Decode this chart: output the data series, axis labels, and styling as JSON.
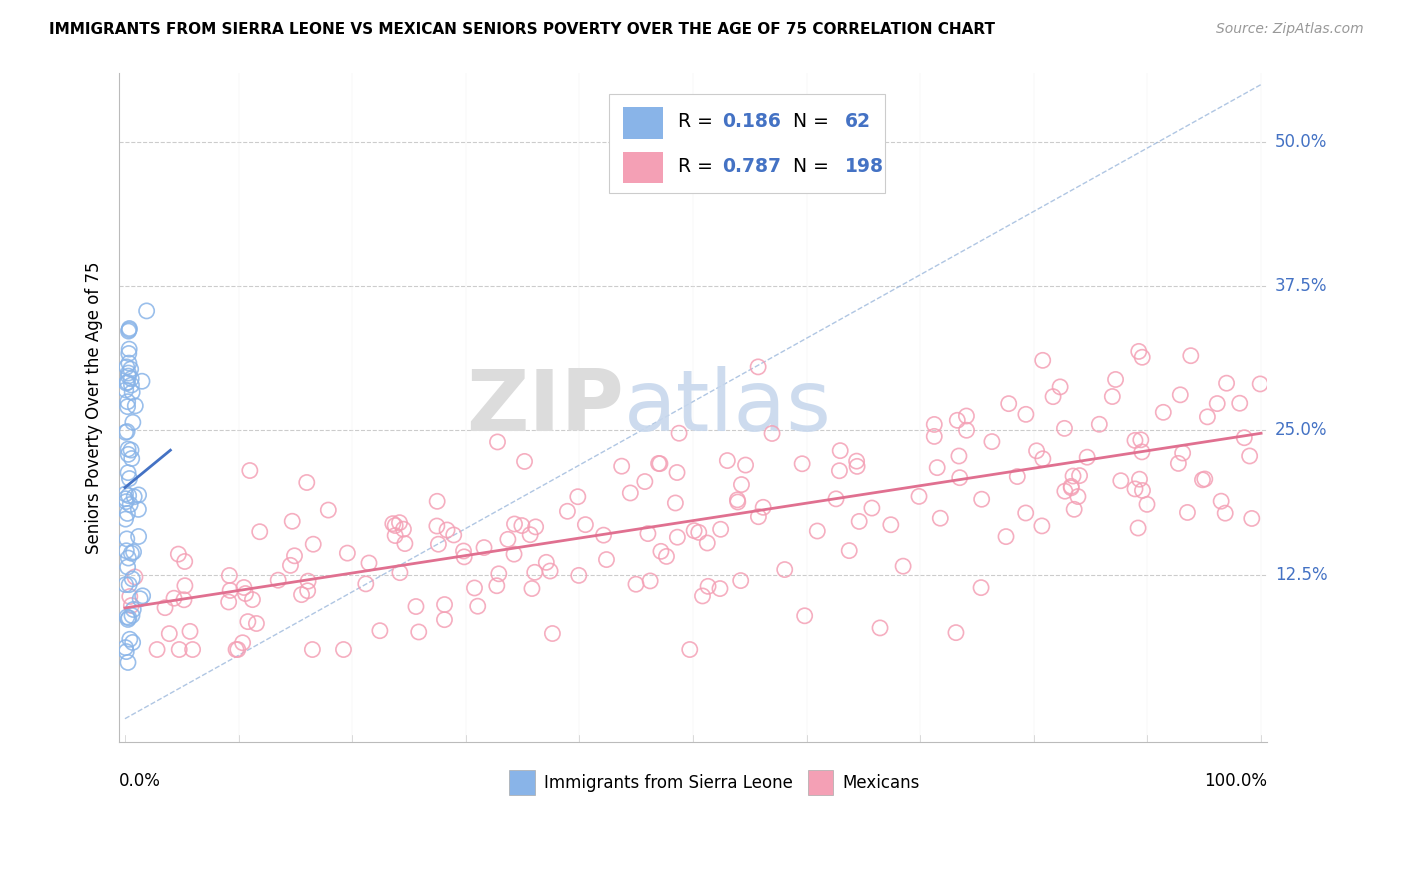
{
  "title": "IMMIGRANTS FROM SIERRA LEONE VS MEXICAN SENIORS POVERTY OVER THE AGE OF 75 CORRELATION CHART",
  "source": "Source: ZipAtlas.com",
  "ylabel": "Seniors Poverty Over the Age of 75",
  "ytick_vals": [
    0.125,
    0.25,
    0.375,
    0.5
  ],
  "ytick_labels": [
    "12.5%",
    "25.0%",
    "37.5%",
    "50.0%"
  ],
  "watermark_zip": "ZIP",
  "watermark_atlas": "atlas",
  "color_sierra": "#89B4E8",
  "color_mexican": "#F4A0B5",
  "color_line_sierra": "#4472C4",
  "color_line_mexican": "#E07090",
  "color_diag": "#9CB8DC",
  "xlim": [
    0.0,
    1.0
  ],
  "ylim_min": -0.02,
  "ylim_max": 0.56,
  "legend_r1": "0.186",
  "legend_n1": "62",
  "legend_r2": "0.787",
  "legend_n2": "198"
}
